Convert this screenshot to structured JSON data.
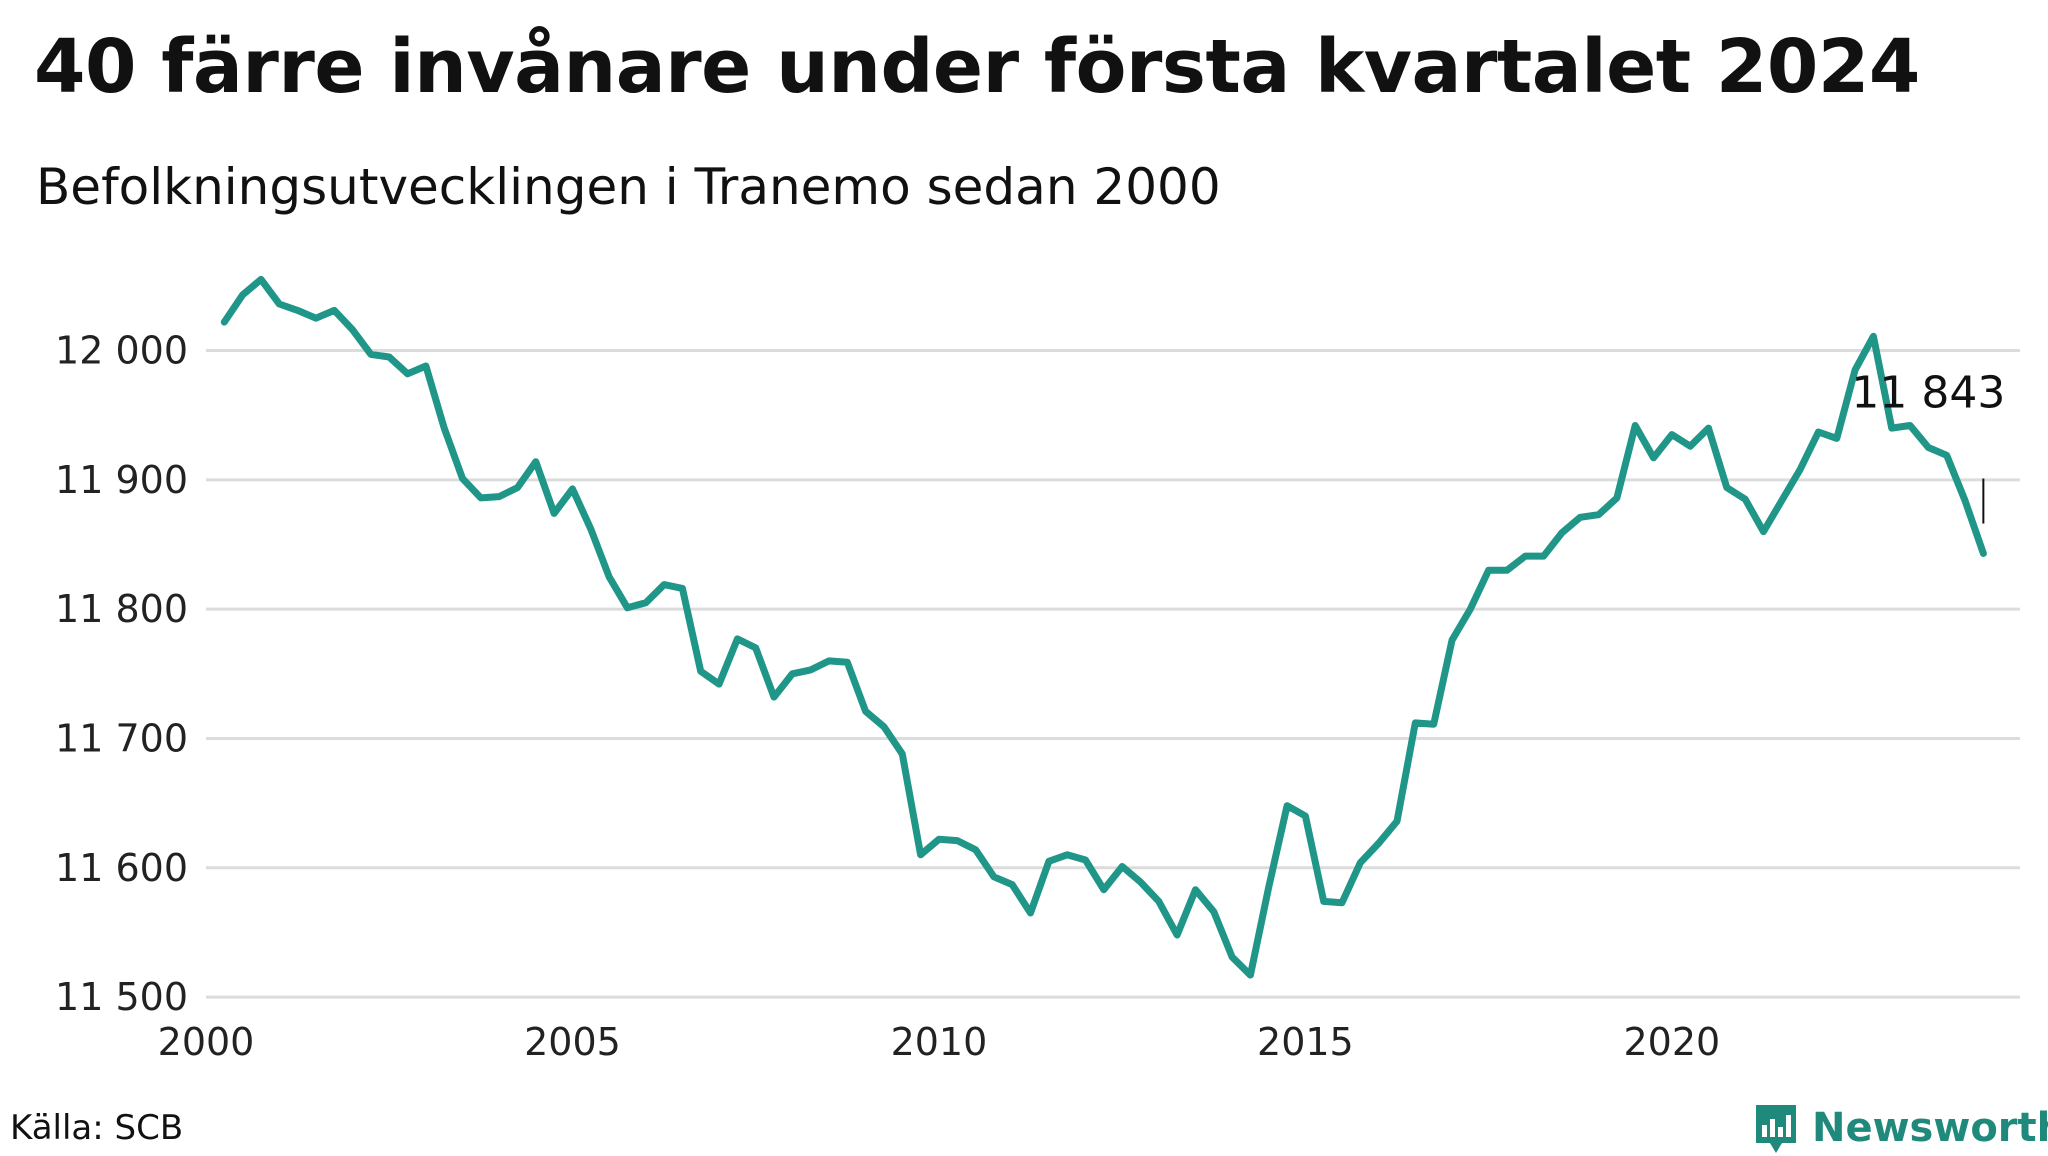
{
  "title": "40 färre invånare under första kvartalet 2024",
  "subtitle": "Befolkningsutvecklingen i Tranemo sedan 2000",
  "source": "Källa: SCB",
  "brand": {
    "name": "Newsworthy",
    "icon": "newsworthy-bar-chart-icon"
  },
  "colors": {
    "line": "#1f9688",
    "grid": "#dcdcdc",
    "brand": "#1f8a7c"
  },
  "chart_data": {
    "type": "line",
    "title": "40 färre invånare under första kvartalet 2024",
    "subtitle": "Befolkningsutvecklingen i Tranemo sedan 2000",
    "xlabel": "",
    "ylabel": "",
    "xlim": [
      2000,
      2024.75
    ],
    "ylim": [
      11490,
      12070
    ],
    "grid": true,
    "legend": "none",
    "y_ticks": [
      {
        "value": 11500,
        "label": "11 500"
      },
      {
        "value": 11600,
        "label": "11 600"
      },
      {
        "value": 11700,
        "label": "11 700"
      },
      {
        "value": 11800,
        "label": "11 800"
      },
      {
        "value": 11900,
        "label": "11 900"
      },
      {
        "value": 12000,
        "label": "12 000"
      }
    ],
    "x_ticks": [
      {
        "value": 2000,
        "label": "2000"
      },
      {
        "value": 2005,
        "label": "2005"
      },
      {
        "value": 2010,
        "label": "2010"
      },
      {
        "value": 2015,
        "label": "2015"
      },
      {
        "value": 2020,
        "label": "2020"
      }
    ],
    "annotation": {
      "label": "11 843",
      "x": 2024.25,
      "y": 11843
    },
    "series": [
      {
        "x": [
          2000.25,
          2000.5,
          2000.75,
          2001.0,
          2001.25,
          2001.5,
          2001.75,
          2002.0,
          2002.25,
          2002.5,
          2002.75,
          2003.0,
          2003.25,
          2003.5,
          2003.75,
          2004.0,
          2004.25,
          2004.5,
          2004.75,
          2005.0,
          2005.25,
          2005.5,
          2005.75,
          2006.0,
          2006.25,
          2006.5,
          2006.75,
          2007.0,
          2007.25,
          2007.5,
          2007.75,
          2008.0,
          2008.25,
          2008.5,
          2008.75,
          2009.0,
          2009.25,
          2009.5,
          2009.75,
          2010.0,
          2010.25,
          2010.5,
          2010.75,
          2011.0,
          2011.25,
          2011.5,
          2011.75,
          2012.0,
          2012.25,
          2012.5,
          2012.75,
          2013.0,
          2013.25,
          2013.5,
          2013.75,
          2014.0,
          2014.25,
          2014.5,
          2014.75,
          2015.0,
          2015.25,
          2015.5,
          2015.75,
          2016.0,
          2016.25,
          2016.5,
          2016.75,
          2017.0,
          2017.25,
          2017.5,
          2017.75,
          2018.0,
          2018.25,
          2018.5,
          2018.75,
          2019.0,
          2019.25,
          2019.5,
          2019.75,
          2020.0,
          2020.25,
          2020.5,
          2020.75,
          2021.0,
          2021.25,
          2021.5,
          2021.75,
          2022.0,
          2022.25,
          2022.5,
          2022.75,
          2023.0,
          2023.25,
          2023.5,
          2023.75,
          2024.0,
          2024.25
        ],
        "values": [
          12022,
          12043,
          12055,
          12036,
          12031,
          12025,
          12031,
          12016,
          11997,
          11995,
          11982,
          11988,
          11940,
          11901,
          11886,
          11887,
          11894,
          11914,
          11874,
          11893,
          11862,
          11825,
          11801,
          11805,
          11819,
          11816,
          11752,
          11742,
          11777,
          11770,
          11732,
          11750,
          11753,
          11760,
          11759,
          11721,
          11709,
          11688,
          11610,
          11622,
          11621,
          11614,
          11593,
          11587,
          11565,
          11605,
          11610,
          11606,
          11583,
          11601,
          11589,
          11574,
          11548,
          11583,
          11566,
          11531,
          11517,
          11585,
          11648,
          11640,
          11574,
          11573,
          11604,
          11619,
          11636,
          11712,
          11711,
          11776,
          11800,
          11830,
          11830,
          11841,
          11841,
          11859,
          11871,
          11873,
          11886,
          11942,
          11917,
          11935,
          11926,
          11940,
          11894,
          11885,
          11860,
          11884,
          11908,
          11937,
          11932,
          11985,
          12011,
          11940,
          11942,
          11925,
          11919,
          11884,
          11843
        ]
      }
    ]
  }
}
